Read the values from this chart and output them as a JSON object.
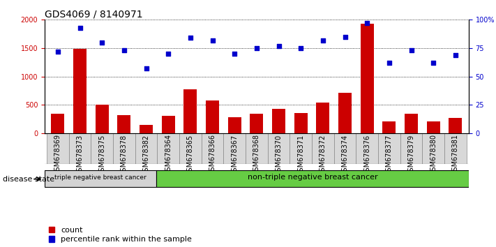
{
  "title": "GDS4069 / 8140971",
  "samples": [
    "GSM678369",
    "GSM678373",
    "GSM678375",
    "GSM678378",
    "GSM678382",
    "GSM678364",
    "GSM678365",
    "GSM678366",
    "GSM678367",
    "GSM678368",
    "GSM678370",
    "GSM678371",
    "GSM678372",
    "GSM678374",
    "GSM678376",
    "GSM678377",
    "GSM678379",
    "GSM678380",
    "GSM678381"
  ],
  "counts": [
    340,
    1490,
    510,
    320,
    155,
    305,
    770,
    575,
    285,
    340,
    430,
    360,
    540,
    720,
    1930,
    215,
    340,
    210,
    275
  ],
  "percentiles": [
    72,
    93,
    80,
    73,
    57,
    70,
    84,
    82,
    70,
    75,
    77,
    75,
    82,
    85,
    97,
    62,
    73,
    62,
    69
  ],
  "bar_color": "#cc0000",
  "dot_color": "#0000cc",
  "ylim_left": [
    0,
    2000
  ],
  "ylim_right": [
    0,
    100
  ],
  "yticks_left": [
    0,
    500,
    1000,
    1500,
    2000
  ],
  "yticks_right": [
    0,
    25,
    50,
    75,
    100
  ],
  "ytick_labels_right": [
    "0",
    "25",
    "50",
    "75",
    "100%"
  ],
  "group1_label": "triple negative breast cancer",
  "group2_label": "non-triple negative breast cancer",
  "group1_count": 5,
  "group2_count": 14,
  "group1_color": "#d3d3d3",
  "group2_color": "#66cc44",
  "disease_state_label": "disease state",
  "legend_count_label": "count",
  "legend_percentile_label": "percentile rank within the sample",
  "title_fontsize": 10,
  "tick_fontsize": 7,
  "background_color": "#ffffff"
}
